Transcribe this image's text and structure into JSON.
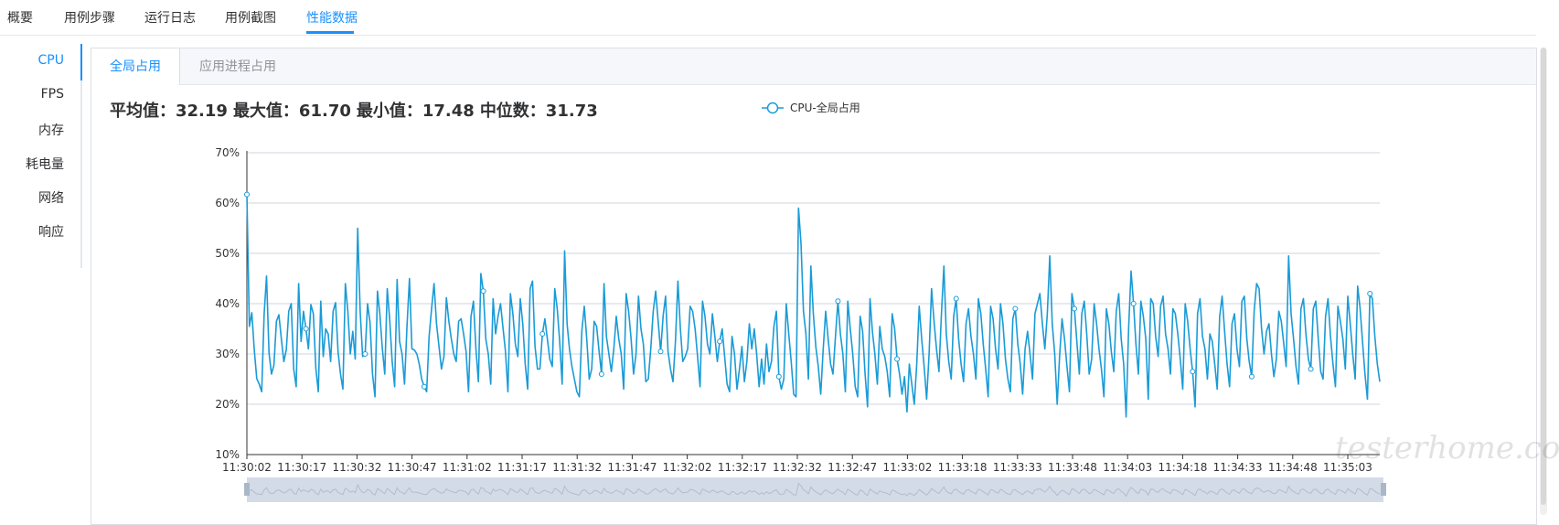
{
  "tabs": [
    {
      "label": "概要",
      "active": false
    },
    {
      "label": "用例步骤",
      "active": false
    },
    {
      "label": "运行日志",
      "active": false
    },
    {
      "label": "用例截图",
      "active": false
    },
    {
      "label": "性能数据",
      "active": true
    }
  ],
  "sidebar": {
    "items": [
      {
        "label": "CPU",
        "active": true
      },
      {
        "label": "FPS",
        "active": false
      },
      {
        "label": "内存",
        "active": false
      },
      {
        "label": "耗电量",
        "active": false
      },
      {
        "label": "网络",
        "active": false
      },
      {
        "label": "响应",
        "active": false
      }
    ]
  },
  "subtabs": [
    {
      "label": "全局占用",
      "active": true
    },
    {
      "label": "应用进程占用",
      "active": false
    }
  ],
  "stats": {
    "avg": "平均值：32.19",
    "max": "最大值：61.70",
    "min": "最小值：17.48",
    "median": "中位数：31.73"
  },
  "watermark": "testerhome.com",
  "colors": {
    "accent": "#1890ff",
    "series": "#1a9bd7",
    "grid": "#cfd4dc"
  },
  "chart_data": {
    "type": "line",
    "legend": "CPU-全局占用",
    "legend_position": "top-center",
    "ylim": [
      10,
      70
    ],
    "yticks": [
      10,
      20,
      30,
      40,
      50,
      60,
      70
    ],
    "ytick_labels": [
      "10%",
      "20%",
      "30%",
      "40%",
      "50%",
      "60%",
      "70%"
    ],
    "xtick_labels": [
      "11:30:02",
      "11:30:17",
      "11:30:32",
      "11:30:47",
      "11:31:02",
      "11:31:17",
      "11:31:32",
      "11:31:47",
      "11:32:02",
      "11:32:17",
      "11:32:32",
      "11:32:47",
      "11:33:02",
      "11:33:18",
      "11:33:33",
      "11:33:48",
      "11:34:03",
      "11:34:18",
      "11:34:33",
      "11:34:48",
      "11:35:03"
    ],
    "grid": true,
    "x_zoom_slider": true,
    "series": [
      {
        "name": "CPU-全局占用",
        "values": [
          61.7,
          35.5,
          38.2,
          30.8,
          25.1,
          24.0,
          22.5,
          38.0,
          45.5,
          30.2,
          26.0,
          27.8,
          36.5,
          37.8,
          33.0,
          28.5,
          30.8,
          38.5,
          40.0,
          27.0,
          23.5,
          44.0,
          32.5,
          38.5,
          35.0,
          31.0,
          39.8,
          38.0,
          27.2,
          22.5,
          40.5,
          29.5,
          35.0,
          34.0,
          28.5,
          38.5,
          40.2,
          30.5,
          26.0,
          23.0,
          44.0,
          38.5,
          30.0,
          34.5,
          29.0,
          55.0,
          38.5,
          29.5,
          30.0,
          40.0,
          36.2,
          26.0,
          21.5,
          42.5,
          38.0,
          31.2,
          26.0,
          43.0,
          36.8,
          28.5,
          23.5,
          44.8,
          32.5,
          30.0,
          24.0,
          35.5,
          45.0,
          31.0,
          30.8,
          30.0,
          28.0,
          25.0,
          23.5,
          22.5,
          33.5,
          39.0,
          44.0,
          36.0,
          31.5,
          27.0,
          29.5,
          41.2,
          36.5,
          33.0,
          30.0,
          28.5,
          36.5,
          37.0,
          34.0,
          30.5,
          22.5,
          37.5,
          40.5,
          31.0,
          24.5,
          46.0,
          42.5,
          33.0,
          30.0,
          24.0,
          41.0,
          34.0,
          37.5,
          40.0,
          35.2,
          30.5,
          22.5,
          42.0,
          38.0,
          32.0,
          29.5,
          41.0,
          36.0,
          28.0,
          23.0,
          43.0,
          44.5,
          31.5,
          27.0,
          27.0,
          34.0,
          37.0,
          33.0,
          29.0,
          27.5,
          43.0,
          39.0,
          32.5,
          24.0,
          50.5,
          36.0,
          31.0,
          27.5,
          25.0,
          22.5,
          21.5,
          34.5,
          39.5,
          33.0,
          25.0,
          27.0,
          36.5,
          35.5,
          30.5,
          26.0,
          44.0,
          33.5,
          30.0,
          26.5,
          31.0,
          37.5,
          33.0,
          30.0,
          23.0,
          42.0,
          38.5,
          33.0,
          26.0,
          30.0,
          41.5,
          35.0,
          32.0,
          24.5,
          25.0,
          31.0,
          38.5,
          42.5,
          36.5,
          30.5,
          37.5,
          41.5,
          30.5,
          27.0,
          24.5,
          32.5,
          44.5,
          35.0,
          28.5,
          29.5,
          31.0,
          39.5,
          38.5,
          35.0,
          29.5,
          23.5,
          40.5,
          37.5,
          32.0,
          30.0,
          38.0,
          33.5,
          28.5,
          32.5,
          35.0,
          29.5,
          24.0,
          22.5,
          33.5,
          30.0,
          23.0,
          27.0,
          31.5,
          24.5,
          28.5,
          36.0,
          31.0,
          35.0,
          30.0,
          23.5,
          29.0,
          24.0,
          32.0,
          26.5,
          28.5,
          35.5,
          38.5,
          25.5,
          23.0,
          25.0,
          40.0,
          34.0,
          28.5,
          22.0,
          21.5,
          59.0,
          52.0,
          38.5,
          34.0,
          25.0,
          47.5,
          38.0,
          31.5,
          27.5,
          22.0,
          31.0,
          38.5,
          33.0,
          28.0,
          26.0,
          33.5,
          40.5,
          34.0,
          30.0,
          22.5,
          40.5,
          35.0,
          30.0,
          23.5,
          21.5,
          37.5,
          34.5,
          26.0,
          19.5,
          41.0,
          34.5,
          30.0,
          24.0,
          35.5,
          31.0,
          29.5,
          26.5,
          21.5,
          38.0,
          35.0,
          29.0,
          26.0,
          22.0,
          25.5,
          18.5,
          28.0,
          24.0,
          20.0,
          28.0,
          39.5,
          33.0,
          27.5,
          21.0,
          30.0,
          43.0,
          36.5,
          31.0,
          26.5,
          38.0,
          47.5,
          34.0,
          28.5,
          25.0,
          37.5,
          41.0,
          33.0,
          28.0,
          24.5,
          36.0,
          39.0,
          33.5,
          30.0,
          25.0,
          41.0,
          38.0,
          32.0,
          27.0,
          21.5,
          39.5,
          37.0,
          31.0,
          27.0,
          40.0,
          36.0,
          29.0,
          25.0,
          22.5,
          37.0,
          39.0,
          32.0,
          28.0,
          22.0,
          31.0,
          34.5,
          30.0,
          25.0,
          38.0,
          40.0,
          42.0,
          36.0,
          31.0,
          38.0,
          49.5,
          36.0,
          30.0,
          20.0,
          29.5,
          37.0,
          33.0,
          27.5,
          22.5,
          42.0,
          39.0,
          32.5,
          26.0,
          38.0,
          40.5,
          34.0,
          26.0,
          29.0,
          40.0,
          36.0,
          31.0,
          27.0,
          21.5,
          39.0,
          36.0,
          30.5,
          26.5,
          38.5,
          42.0,
          33.0,
          28.0,
          17.5,
          35.0,
          46.5,
          40.0,
          32.0,
          26.0,
          40.5,
          37.5,
          33.0,
          21.0,
          41.0,
          40.0,
          33.5,
          29.5,
          39.5,
          41.5,
          34.0,
          31.0,
          26.0,
          39.0,
          38.0,
          34.0,
          29.0,
          23.0,
          40.0,
          36.5,
          31.0,
          26.5,
          19.5,
          38.0,
          41.0,
          33.5,
          31.0,
          25.0,
          34.0,
          32.5,
          28.0,
          23.0,
          37.5,
          41.5,
          34.5,
          28.0,
          23.5,
          36.0,
          38.0,
          31.0,
          27.5,
          40.5,
          41.5,
          33.0,
          28.5,
          25.5,
          38.5,
          44.0,
          43.0,
          35.0,
          30.0,
          34.5,
          36.0,
          30.0,
          25.5,
          29.0,
          38.5,
          36.5,
          32.0,
          27.5,
          49.5,
          38.0,
          33.0,
          27.5,
          24.0,
          39.0,
          41.0,
          34.0,
          29.0,
          27.0,
          39.0,
          40.5,
          33.0,
          26.5,
          25.0,
          37.5,
          41.0,
          33.5,
          28.0,
          23.5,
          39.5,
          36.5,
          33.0,
          27.0,
          41.5,
          36.0,
          30.0,
          25.0,
          43.5,
          39.0,
          32.5,
          26.0,
          21.0,
          42.0,
          41.0,
          33.5,
          28.0,
          24.5
        ]
      }
    ]
  }
}
